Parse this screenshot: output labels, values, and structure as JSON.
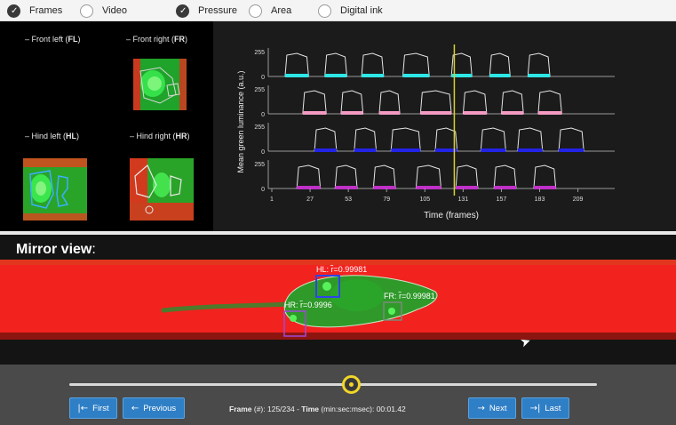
{
  "options": [
    {
      "label": "Frames",
      "checked": true
    },
    {
      "label": "Video",
      "checked": false
    },
    {
      "label": "Pressure",
      "checked": true
    },
    {
      "label": "Area",
      "checked": false
    },
    {
      "label": "Digital ink",
      "checked": false
    }
  ],
  "paws": {
    "fl": {
      "prefix": "– Front left (",
      "abbr": "FL",
      "suffix": ")"
    },
    "fr": {
      "prefix": "– Front right (",
      "abbr": "FR",
      "suffix": ")"
    },
    "hl": {
      "prefix": "– Hind left (",
      "abbr": "HL",
      "suffix": ")"
    },
    "hr": {
      "prefix": "– Hind right (",
      "abbr": "HR",
      "suffix": ")"
    }
  },
  "chart_data": {
    "type": "line",
    "ylabel": "Mean green luminance (a.u.)",
    "xlabel": "Time (frames)",
    "xlim": [
      1,
      234
    ],
    "x_ticks": [
      1,
      27,
      53,
      79,
      105,
      131,
      157,
      183,
      209
    ],
    "y_ticks": [
      0,
      255
    ],
    "current_frame": 125,
    "series": [
      {
        "color": "#2fe6e6",
        "steps": [
          [
            10,
            26
          ],
          [
            37,
            52
          ],
          [
            62,
            77
          ],
          [
            90,
            108
          ],
          [
            123,
            137
          ],
          [
            149,
            163
          ],
          [
            175,
            190
          ]
        ]
      },
      {
        "color": "#f39ac2",
        "steps": [
          [
            22,
            38
          ],
          [
            48,
            63
          ],
          [
            74,
            88
          ],
          [
            102,
            123
          ],
          [
            131,
            147
          ],
          [
            157,
            172
          ],
          [
            182,
            198
          ]
        ]
      },
      {
        "color": "#2323e6",
        "steps": [
          [
            30,
            45
          ],
          [
            57,
            72
          ],
          [
            82,
            102
          ],
          [
            112,
            127
          ],
          [
            143,
            160
          ],
          [
            168,
            185
          ],
          [
            196,
            213
          ]
        ]
      },
      {
        "color": "#c030c8",
        "steps": [
          [
            18,
            34
          ],
          [
            44,
            59
          ],
          [
            70,
            85
          ],
          [
            99,
            116
          ],
          [
            126,
            141
          ],
          [
            152,
            167
          ],
          [
            179,
            194
          ]
        ]
      }
    ]
  },
  "mirror": {
    "title": "Mirror view",
    "title_suffix": ":",
    "labels": {
      "hl": "HL: r̃=0.99981",
      "fr": "FR: r̃=0.99981",
      "hr": "HR: r̃=0.9996"
    }
  },
  "slider": {
    "value": 125,
    "max": 234
  },
  "buttons": {
    "first": "First",
    "previous": "Previous",
    "next": "Next",
    "last": "Last"
  },
  "frame_info": {
    "frame_label": "Frame",
    "frame_unit": " (#): ",
    "frame_value": "125/234",
    "sep": " - ",
    "time_label": "Time",
    "time_unit": " (min:sec:msec): ",
    "time_value": "00:01.42"
  }
}
